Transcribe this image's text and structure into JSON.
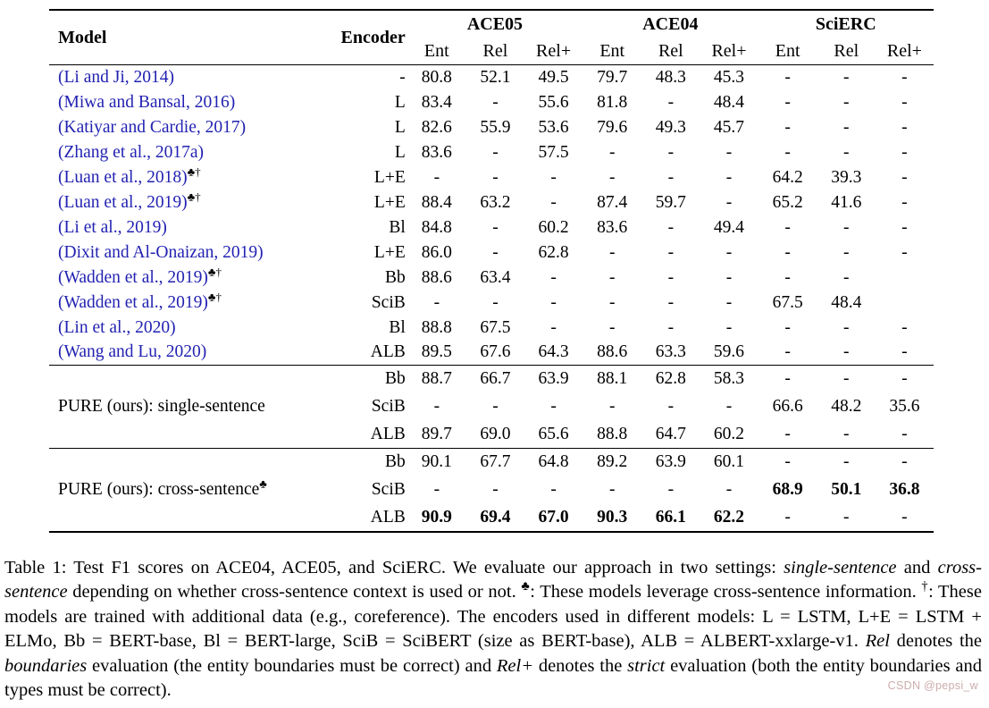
{
  "table": {
    "header": {
      "model": "Model",
      "encoder": "Encoder",
      "groups": [
        {
          "label": "ACE05",
          "sub": [
            "Ent",
            "Rel",
            "Rel+"
          ]
        },
        {
          "label": "ACE04",
          "sub": [
            "Ent",
            "Rel",
            "Rel+"
          ]
        },
        {
          "label": "SciERC",
          "sub": [
            "Ent",
            "Rel",
            "Rel+"
          ]
        }
      ]
    },
    "sections": [
      {
        "rows": [
          {
            "citation": "(Li and Ji, 2014)",
            "sup": "",
            "encoder": "-",
            "values": [
              "80.8",
              "52.1",
              "49.5",
              "79.7",
              "48.3",
              "45.3",
              "-",
              "-",
              "-"
            ]
          },
          {
            "citation": "(Miwa and Bansal, 2016)",
            "sup": "",
            "encoder": "L",
            "values": [
              "83.4",
              "-",
              "55.6",
              "81.8",
              "-",
              "48.4",
              "-",
              "-",
              "-"
            ]
          },
          {
            "citation": "(Katiyar and Cardie, 2017)",
            "sup": "",
            "encoder": "L",
            "values": [
              "82.6",
              "55.9",
              "53.6",
              "79.6",
              "49.3",
              "45.7",
              "-",
              "-",
              "-"
            ]
          },
          {
            "citation": "(Zhang et al., 2017a)",
            "sup": "",
            "encoder": "L",
            "values": [
              "83.6",
              "-",
              "57.5",
              "-",
              "-",
              "-",
              "-",
              "-",
              "-"
            ]
          },
          {
            "citation": "(Luan et al., 2018)",
            "sup": "♣†",
            "encoder": "L+E",
            "values": [
              "-",
              "-",
              "-",
              "-",
              "-",
              "-",
              "64.2",
              "39.3",
              "-"
            ]
          },
          {
            "citation": "(Luan et al., 2019)",
            "sup": "♣†",
            "encoder": "L+E",
            "values": [
              "88.4",
              "63.2",
              "-",
              "87.4",
              "59.7",
              "-",
              "65.2",
              "41.6",
              "-"
            ]
          },
          {
            "citation": "(Li et al., 2019)",
            "sup": "",
            "encoder": "Bl",
            "values": [
              "84.8",
              "-",
              "60.2",
              "83.6",
              "-",
              "49.4",
              "-",
              "-",
              "-"
            ]
          },
          {
            "citation": "(Dixit and Al-Onaizan, 2019)",
            "sup": "",
            "encoder": "L+E",
            "values": [
              "86.0",
              "-",
              "62.8",
              "-",
              "-",
              "-",
              "-",
              "-",
              "-"
            ]
          },
          {
            "citation": "(Wadden et al., 2019)",
            "sup": "♣†",
            "encoder": "Bb",
            "values": [
              "88.6",
              "63.4",
              "-",
              "-",
              "-",
              "-",
              "-",
              "-",
              ""
            ]
          },
          {
            "citation": "(Wadden et al., 2019)",
            "sup": "♣†",
            "encoder": "SciB",
            "values": [
              "-",
              "-",
              "-",
              "-",
              "-",
              "-",
              "67.5",
              "48.4",
              ""
            ]
          },
          {
            "citation": "(Lin et al., 2020)",
            "sup": "",
            "encoder": "Bl",
            "values": [
              "88.8",
              "67.5",
              "-",
              "-",
              "-",
              "-",
              "-",
              "-",
              "-"
            ]
          },
          {
            "citation": "(Wang and Lu, 2020)",
            "sup": "",
            "encoder": "ALB",
            "values": [
              "89.5",
              "67.6",
              "64.3",
              "88.6",
              "63.3",
              "59.6",
              "-",
              "-",
              "-"
            ]
          }
        ]
      },
      {
        "label": "PURE (ours): single-sentence",
        "label_sup": "",
        "rows": [
          {
            "encoder": "Bb",
            "values": [
              "88.7",
              "66.7",
              "63.9",
              "88.1",
              "62.8",
              "58.3",
              "-",
              "-",
              "-"
            ],
            "bold": []
          },
          {
            "encoder": "SciB",
            "values": [
              "-",
              "-",
              "-",
              "-",
              "-",
              "-",
              "66.6",
              "48.2",
              "35.6"
            ],
            "bold": []
          },
          {
            "encoder": "ALB",
            "values": [
              "89.7",
              "69.0",
              "65.6",
              "88.8",
              "64.7",
              "60.2",
              "-",
              "-",
              "-"
            ],
            "bold": []
          }
        ]
      },
      {
        "label": "PURE (ours): cross-sentence",
        "label_sup": "♣",
        "rows": [
          {
            "encoder": "Bb",
            "values": [
              "90.1",
              "67.7",
              "64.8",
              "89.2",
              "63.9",
              "60.1",
              "-",
              "-",
              "-"
            ],
            "bold": []
          },
          {
            "encoder": "SciB",
            "values": [
              "-",
              "-",
              "-",
              "-",
              "-",
              "-",
              "68.9",
              "50.1",
              "36.8"
            ],
            "bold": [
              6,
              7,
              8
            ]
          },
          {
            "encoder": "ALB",
            "values": [
              "90.9",
              "69.4",
              "67.0",
              "90.3",
              "66.1",
              "62.2",
              "-",
              "-",
              "-"
            ],
            "bold": [
              0,
              1,
              2,
              3,
              4,
              5
            ]
          }
        ]
      }
    ]
  },
  "caption": {
    "segments": [
      {
        "t": "Table 1: Test F1 scores on ACE04, ACE05, and SciERC. We evaluate our approach in two settings: "
      },
      {
        "t": "single-sentence",
        "i": true
      },
      {
        "t": " and "
      },
      {
        "t": "cross-sentence",
        "i": true
      },
      {
        "t": " depending on whether cross-sentence context is used or not. "
      },
      {
        "t": "♣",
        "sup": true
      },
      {
        "t": ": These models leverage cross-sentence information. "
      },
      {
        "t": "†",
        "sup": true
      },
      {
        "t": ": These models are trained with additional data (e.g., coreference). The encoders used in different models: L = LSTM, L+E = LSTM + ELMo, Bb = BERT-base, Bl = BERT-large, SciB = SciBERT (size as BERT-base), ALB = ALBERT-xxlarge-v1. "
      },
      {
        "t": "Rel",
        "i": true
      },
      {
        "t": " denotes the "
      },
      {
        "t": "boundaries",
        "i": true
      },
      {
        "t": " evaluation (the entity boundaries must be correct) and "
      },
      {
        "t": "Rel+",
        "i": true
      },
      {
        "t": " denotes the "
      },
      {
        "t": "strict",
        "i": true
      },
      {
        "t": " evaluation (both the entity boundaries and types must be correct)."
      }
    ]
  },
  "watermark": "CSDN @pepsi_w",
  "colors": {
    "citation_blue": "#2222b2",
    "text": "#000000",
    "watermark_pink": "#ccacac"
  }
}
